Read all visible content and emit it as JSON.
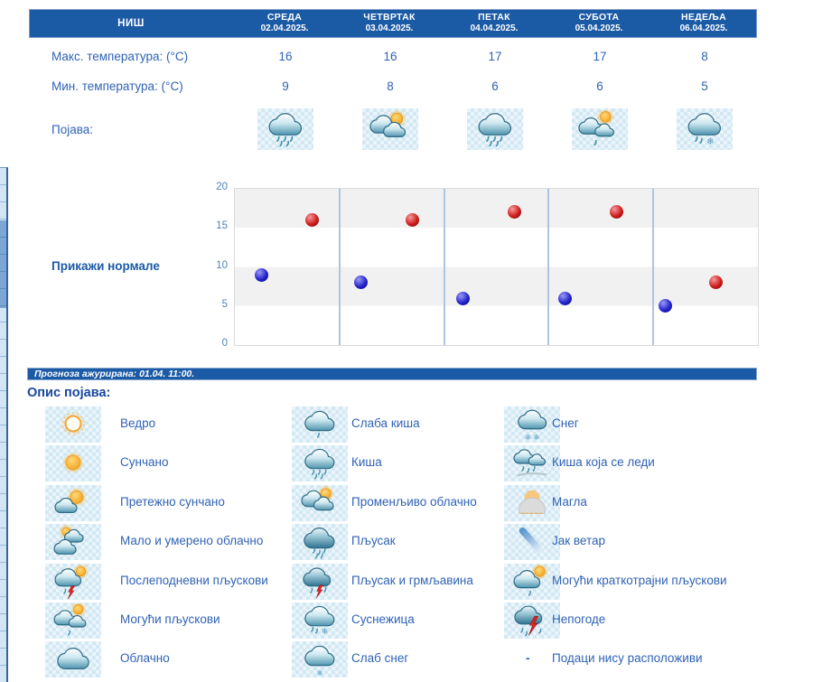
{
  "table": {
    "station": "НИШ",
    "days": [
      {
        "name": "СРЕДА",
        "date": "02.04.2025."
      },
      {
        "name": "ЧЕТВРТАК",
        "date": "03.04.2025."
      },
      {
        "name": "ПЕТАК",
        "date": "04.04.2025."
      },
      {
        "name": "СУБОТА",
        "date": "05.04.2025."
      },
      {
        "name": "НЕДЕЉА",
        "date": "06.04.2025."
      }
    ],
    "max_label": "Макс. температура: (°C)",
    "max_values": [
      16,
      16,
      17,
      17,
      8
    ],
    "min_label": "Мин. температура: (°C)",
    "min_values": [
      9,
      8,
      6,
      6,
      5
    ],
    "appearance_label": "Појава:",
    "appearance_icons": [
      "rain",
      "variable-cloudy",
      "rain",
      "possible-showers",
      "sleet"
    ]
  },
  "chart": {
    "normals_link": "Прикажи нормале"
  },
  "chart_data": {
    "type": "scatter",
    "title": "",
    "categories": [
      "СРЕДА 02.04.2025.",
      "ЧЕТВРТАК 03.04.2025.",
      "ПЕТАК 04.04.2025.",
      "СУБОТА 05.04.2025.",
      "НЕДЕЉА 06.04.2025."
    ],
    "series": [
      {
        "name": "Макс. температура (°C)",
        "color": "#cc1717",
        "values": [
          16,
          16,
          17,
          17,
          8
        ]
      },
      {
        "name": "Мин. температура (°C)",
        "color": "#1a1acc",
        "values": [
          9,
          8,
          6,
          6,
          5
        ]
      }
    ],
    "ylim": [
      0,
      20
    ],
    "yticks": [
      20,
      15,
      10,
      5,
      0
    ],
    "grid": "alternating gray/white horizontal bands every 5 units, light blue vertical separators between days",
    "legend": "none"
  },
  "update_bar": {
    "text": "Прогноза ажурирана:  01.04. 11:00."
  },
  "legend": {
    "title": "Опис појава:",
    "items": [
      {
        "icon": "clear",
        "label": "Ведро"
      },
      {
        "icon": "light-rain",
        "label": "Слаба киша"
      },
      {
        "icon": "snow",
        "label": "Снег"
      },
      {
        "icon": "sunny",
        "label": "Сунчано"
      },
      {
        "icon": "rain",
        "label": "Киша"
      },
      {
        "icon": "freezing-rain",
        "label": "Киша која се леди"
      },
      {
        "icon": "mostly-sunny",
        "label": "Претежно сунчано"
      },
      {
        "icon": "variable-cloudy",
        "label": "Променљиво облачно"
      },
      {
        "icon": "fog",
        "label": "Магла"
      },
      {
        "icon": "partly-cloudy",
        "label": "Мало и умерено облачно"
      },
      {
        "icon": "shower",
        "label": "Пљусак"
      },
      {
        "icon": "strong-wind",
        "label": "Јак ветар"
      },
      {
        "icon": "afternoon-showers",
        "label": "Послеподневни пљускови"
      },
      {
        "icon": "shower-thunder",
        "label": "Пљусак и грмљавина"
      },
      {
        "icon": "possible-brief-showers",
        "label": "Могући краткотрајни пљускови"
      },
      {
        "icon": "possible-showers",
        "label": "Могући пљускови"
      },
      {
        "icon": "sleet",
        "label": "Суснежица"
      },
      {
        "icon": "storm",
        "label": "Непогоде"
      },
      {
        "icon": "cloudy",
        "label": "Облачно"
      },
      {
        "icon": "light-snow",
        "label": "Слаб снег"
      },
      {
        "icon": "no-data",
        "label": "Подаци нису расположиви",
        "placeholder": "-"
      }
    ]
  },
  "colors": {
    "header_blue": "#1b5aa5",
    "text_blue": "#2f62b5",
    "tick_blue": "#4f81bd",
    "band_gray": "#f1f1f1",
    "max_dot": "#cc1717",
    "min_dot": "#1a1acc"
  }
}
